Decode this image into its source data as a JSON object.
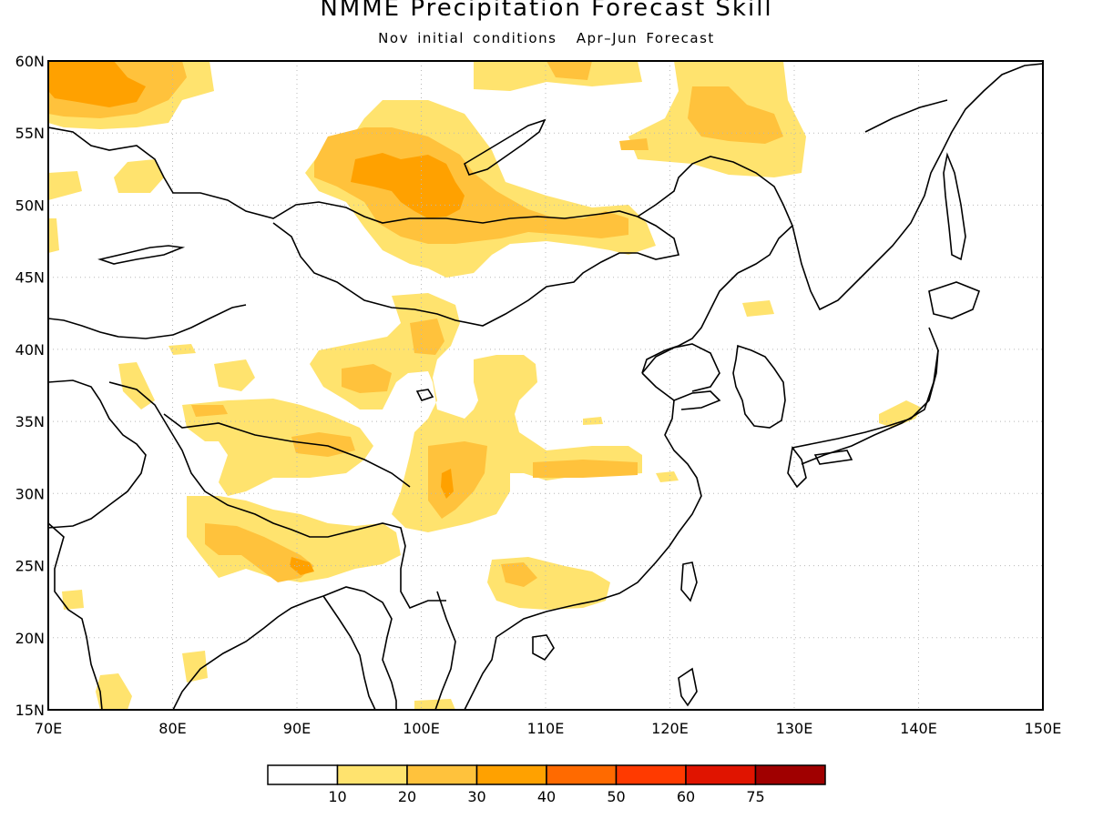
{
  "title": "NMME Precipitation Forecast Skill",
  "subtitle_left": "Nov initial conditions",
  "subtitle_right": "Apr–Jun Forecast",
  "map": {
    "lon_range": [
      70,
      150
    ],
    "lat_range": [
      15,
      60
    ],
    "lon_labels": [
      "70E",
      "80E",
      "90E",
      "100E",
      "110E",
      "120E",
      "130E",
      "140E",
      "150E"
    ],
    "lat_labels": [
      "15N",
      "20N",
      "25N",
      "30N",
      "35N",
      "40N",
      "45N",
      "50N",
      "55N",
      "60N"
    ],
    "gridlines": "dotted"
  },
  "colorbar": {
    "labels": [
      "10",
      "20",
      "30",
      "40",
      "50",
      "60",
      "75"
    ],
    "colors": [
      "#ffffff",
      "#ffe36e",
      "#ffc23c",
      "#ffa100",
      "#ff6a00",
      "#ff3a00",
      "#e01400",
      "#a00000"
    ]
  },
  "colors": {
    "level_10_20": "#ffe36e",
    "level_20_30": "#ffc23c",
    "level_30_40": "#ffa100",
    "coastline": "#000000"
  }
}
